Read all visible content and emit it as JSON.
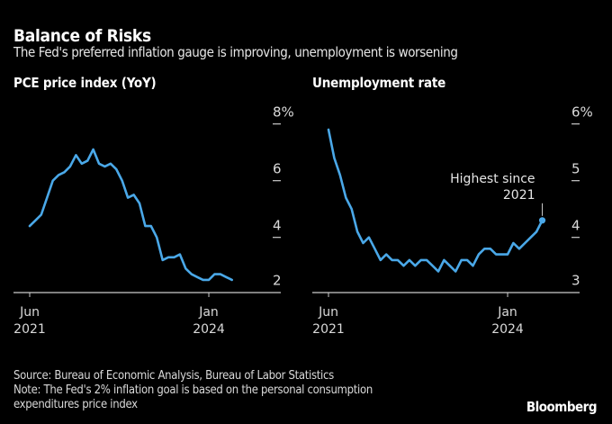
{
  "header": {
    "title": "Balance of Risks",
    "subtitle": "The Fed's preferred inflation gauge is improving, unemployment is worsening"
  },
  "footer": {
    "source": "Source: Bureau of Economic Analysis, Bureau of Labor Statistics",
    "note_line1": "Note: The Fed's 2% inflation goal is based on the personal consumption",
    "note_line2": "expenditures price index",
    "brand": "Bloomberg"
  },
  "colors": {
    "line": "#4aa8e8",
    "axis": "#cccccc",
    "background": "#000000"
  },
  "chart_data": [
    {
      "type": "line",
      "title": "PCE price index (YoY)",
      "xlabel": "",
      "ylabel": "",
      "x_start": "Jun 2021",
      "frequency": "monthly",
      "x_ticks": [
        {
          "label_top": "Jun",
          "label_bottom": "2021",
          "index": 0
        },
        {
          "label_top": "Jan",
          "label_bottom": "2024",
          "index": 31
        }
      ],
      "y_ticks": [
        {
          "value": 8,
          "label": "8%"
        },
        {
          "value": 6,
          "label": "6"
        },
        {
          "value": 4,
          "label": "4"
        },
        {
          "value": 2,
          "label": "2"
        }
      ],
      "ylim": [
        2,
        8
      ],
      "grid": false,
      "series": [
        {
          "name": "PCE price index YoY",
          "values": [
            4.4,
            4.6,
            4.8,
            5.4,
            6.0,
            6.2,
            6.3,
            6.5,
            6.9,
            6.6,
            6.7,
            7.1,
            6.6,
            6.5,
            6.6,
            6.4,
            6.0,
            5.4,
            5.5,
            5.2,
            4.4,
            4.4,
            4.0,
            3.2,
            3.3,
            3.3,
            3.4,
            2.9,
            2.7,
            2.6,
            2.5,
            2.5,
            2.7,
            2.7,
            2.6,
            2.5
          ]
        }
      ]
    },
    {
      "type": "line",
      "title": "Unemployment rate",
      "xlabel": "",
      "ylabel": "",
      "x_start": "Jun 2021",
      "frequency": "monthly",
      "x_ticks": [
        {
          "label_top": "Jun",
          "label_bottom": "2021",
          "index": 0
        },
        {
          "label_top": "Jan",
          "label_bottom": "2024",
          "index": 31
        }
      ],
      "y_ticks": [
        {
          "value": 6,
          "label": "6%"
        },
        {
          "value": 5,
          "label": "5"
        },
        {
          "value": 4,
          "label": "4"
        },
        {
          "value": 3,
          "label": "3"
        }
      ],
      "ylim": [
        3,
        6
      ],
      "grid": false,
      "series": [
        {
          "name": "Unemployment rate",
          "values": [
            5.9,
            5.4,
            5.1,
            4.7,
            4.5,
            4.1,
            3.9,
            4.0,
            3.8,
            3.6,
            3.7,
            3.6,
            3.6,
            3.5,
            3.6,
            3.5,
            3.6,
            3.6,
            3.5,
            3.4,
            3.6,
            3.5,
            3.4,
            3.6,
            3.6,
            3.5,
            3.7,
            3.8,
            3.8,
            3.7,
            3.7,
            3.7,
            3.9,
            3.8,
            3.9,
            4.0,
            4.1,
            4.3
          ]
        }
      ],
      "annotation": {
        "line1": "Highest since",
        "line2": "2021",
        "point_index": 37
      }
    }
  ]
}
